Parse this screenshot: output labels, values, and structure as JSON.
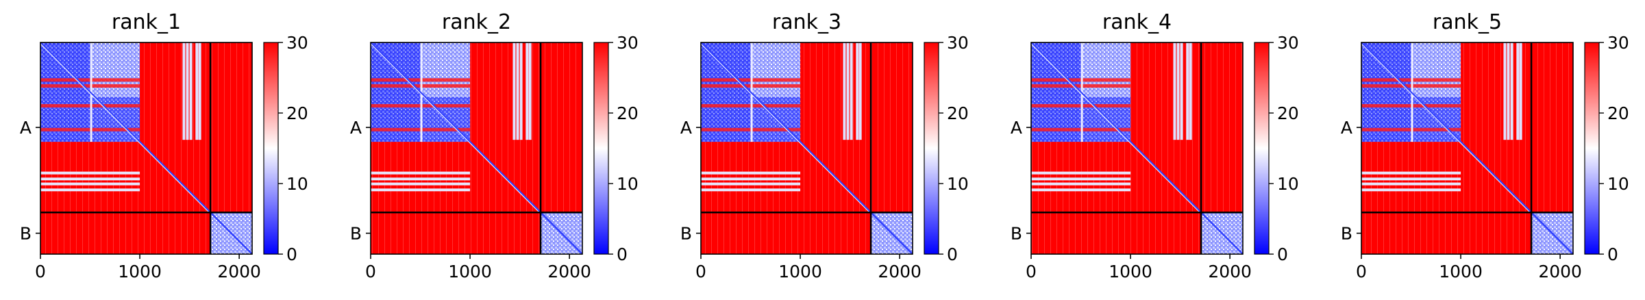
{
  "chart_data": [
    {
      "type": "heatmap",
      "title": "rank_1",
      "xlabel": "",
      "ylabel": "",
      "xlim": [
        0,
        2130
      ],
      "x_ticks": [
        0,
        1000,
        2000
      ],
      "x_tick_labels": [
        "0",
        "1000",
        "2000"
      ],
      "y_categories": [
        "A",
        "B"
      ],
      "chain_boundaries": [
        0,
        1710,
        2130
      ],
      "colorbar": {
        "min": 0,
        "max": 30,
        "ticks": [
          0,
          10,
          20,
          30
        ],
        "tick_labels": [
          "0",
          "10",
          "20",
          "30"
        ],
        "colormap": "bwr"
      },
      "colors": {
        "low": "#0000ff",
        "mid": "#ffffff",
        "high": "#ff0000",
        "boundary": "#000000"
      }
    },
    {
      "type": "heatmap",
      "title": "rank_2",
      "xlabel": "",
      "ylabel": "",
      "xlim": [
        0,
        2130
      ],
      "x_ticks": [
        0,
        1000,
        2000
      ],
      "x_tick_labels": [
        "0",
        "1000",
        "2000"
      ],
      "y_categories": [
        "A",
        "B"
      ],
      "chain_boundaries": [
        0,
        1710,
        2130
      ],
      "colorbar": {
        "min": 0,
        "max": 30,
        "ticks": [
          0,
          10,
          20,
          30
        ],
        "tick_labels": [
          "0",
          "10",
          "20",
          "30"
        ],
        "colormap": "bwr"
      },
      "colors": {
        "low": "#0000ff",
        "mid": "#ffffff",
        "high": "#ff0000",
        "boundary": "#000000"
      }
    },
    {
      "type": "heatmap",
      "title": "rank_3",
      "xlabel": "",
      "ylabel": "",
      "xlim": [
        0,
        2130
      ],
      "x_ticks": [
        0,
        1000,
        2000
      ],
      "x_tick_labels": [
        "0",
        "1000",
        "2000"
      ],
      "y_categories": [
        "A",
        "B"
      ],
      "chain_boundaries": [
        0,
        1710,
        2130
      ],
      "colorbar": {
        "min": 0,
        "max": 30,
        "ticks": [
          0,
          10,
          20,
          30
        ],
        "tick_labels": [
          "0",
          "10",
          "20",
          "30"
        ],
        "colormap": "bwr"
      },
      "colors": {
        "low": "#0000ff",
        "mid": "#ffffff",
        "high": "#ff0000",
        "boundary": "#000000"
      }
    },
    {
      "type": "heatmap",
      "title": "rank_4",
      "xlabel": "",
      "ylabel": "",
      "xlim": [
        0,
        2130
      ],
      "x_ticks": [
        0,
        1000,
        2000
      ],
      "x_tick_labels": [
        "0",
        "1000",
        "2000"
      ],
      "y_categories": [
        "A",
        "B"
      ],
      "chain_boundaries": [
        0,
        1710,
        2130
      ],
      "colorbar": {
        "min": 0,
        "max": 30,
        "ticks": [
          0,
          10,
          20,
          30
        ],
        "tick_labels": [
          "0",
          "10",
          "20",
          "30"
        ],
        "colormap": "bwr"
      },
      "colors": {
        "low": "#0000ff",
        "mid": "#ffffff",
        "high": "#ff0000",
        "boundary": "#000000"
      }
    },
    {
      "type": "heatmap",
      "title": "rank_5",
      "xlabel": "",
      "ylabel": "",
      "xlim": [
        0,
        2130
      ],
      "x_ticks": [
        0,
        1000,
        2000
      ],
      "x_tick_labels": [
        "0",
        "1000",
        "2000"
      ],
      "y_categories": [
        "A",
        "B"
      ],
      "chain_boundaries": [
        0,
        1710,
        2130
      ],
      "colorbar": {
        "min": 0,
        "max": 30,
        "ticks": [
          0,
          10,
          20,
          30
        ],
        "tick_labels": [
          "0",
          "10",
          "20",
          "30"
        ],
        "colormap": "bwr"
      },
      "colors": {
        "low": "#0000ff",
        "mid": "#ffffff",
        "high": "#ff0000",
        "boundary": "#000000"
      }
    }
  ]
}
